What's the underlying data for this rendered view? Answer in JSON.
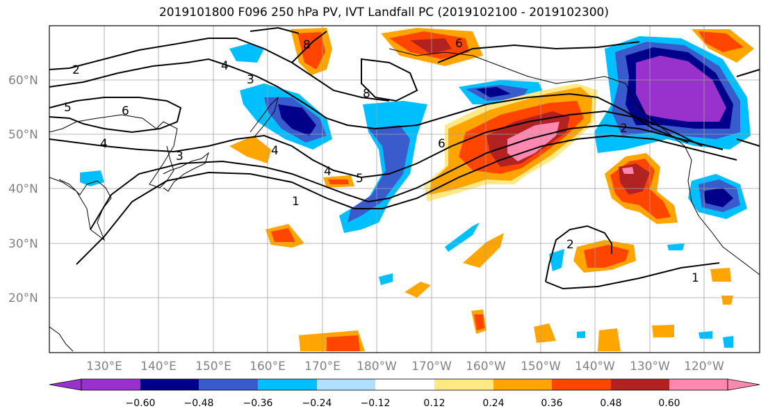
{
  "title": "2019101800 F096 250 hPa PV, IVT Landfall PC (2019102100 - 2019102300)",
  "latitude_labels": [
    "60°N",
    "50°N",
    "40°N",
    "30°N",
    "20°N"
  ],
  "longitude_labels": [
    "130°E",
    "140°E",
    "150°E",
    "160°E",
    "170°E",
    "180°W",
    "170°W",
    "160°W",
    "150°W",
    "140°W",
    "130°W",
    "120°W"
  ],
  "colorbar": {
    "ticks": [
      "−0.60",
      "−0.48",
      "−0.36",
      "−0.24",
      "−0.12",
      "0.12",
      "0.24",
      "0.36",
      "0.48",
      "0.60"
    ],
    "colors": [
      "#9932CC",
      "#00008B",
      "#3A5BCC",
      "#00BFFF",
      "#B0E0FF",
      "#FFFFFF",
      "#FFE985",
      "#FFA500",
      "#FF4500",
      "#B22222",
      "#FF88B0"
    ]
  },
  "contour_labels": [
    "2",
    "5",
    "6",
    "4",
    "3",
    "8",
    "4",
    "3",
    "6",
    "8",
    "6",
    "4",
    "5",
    "4",
    "1",
    "2",
    "2",
    "1"
  ]
}
